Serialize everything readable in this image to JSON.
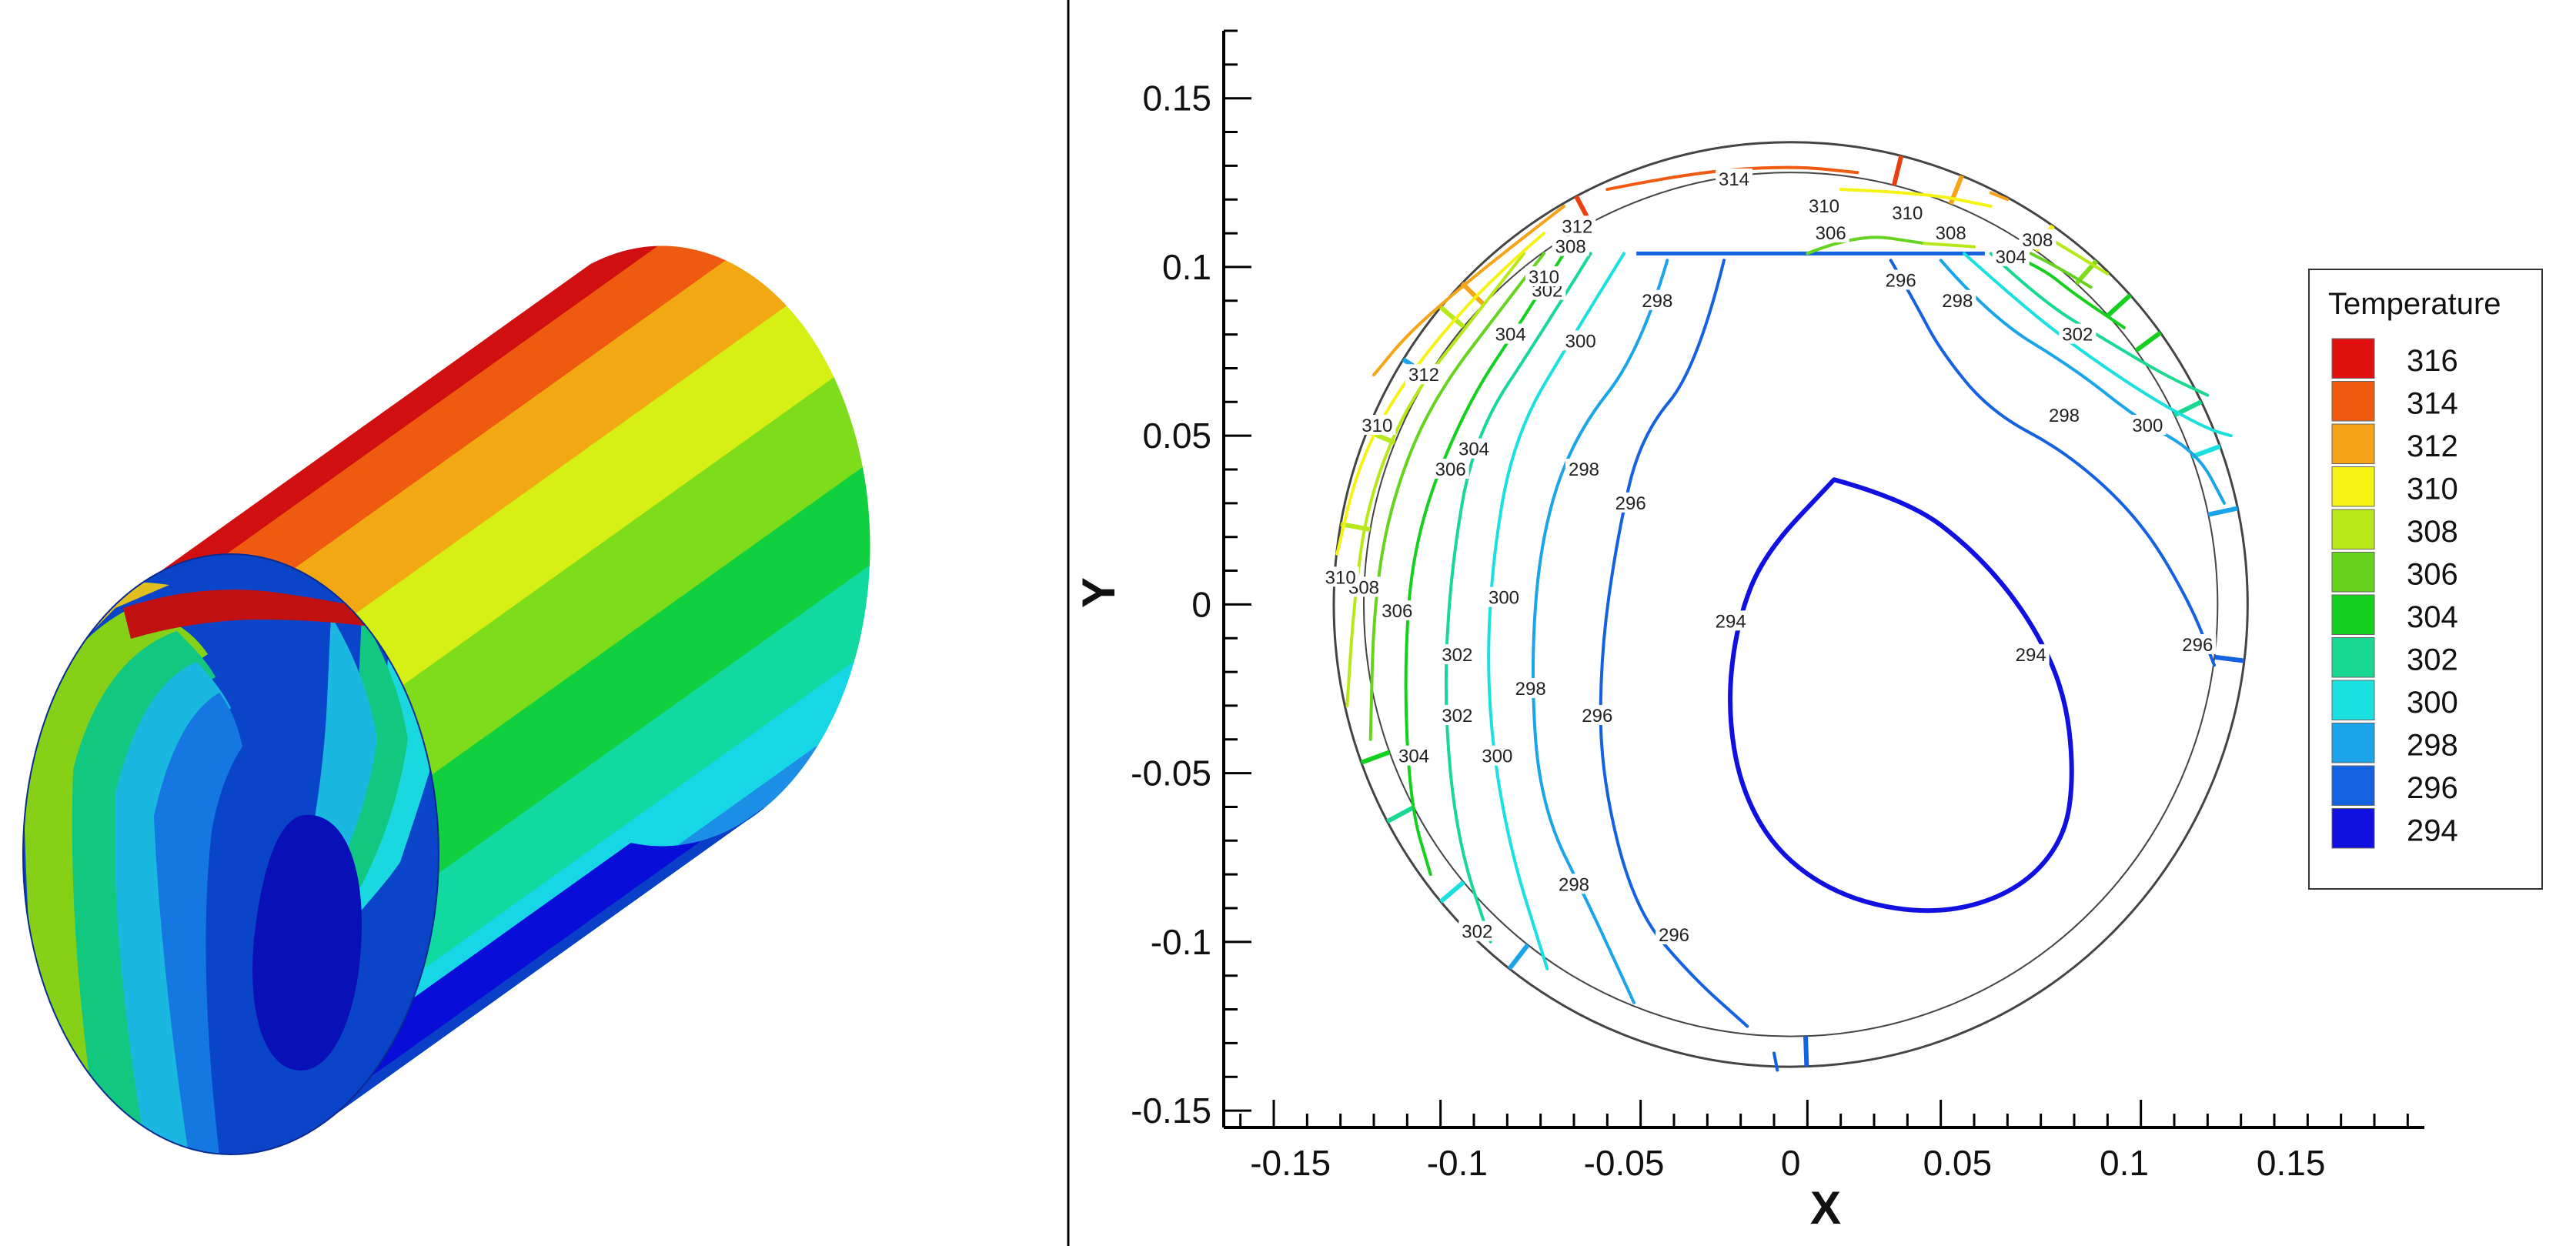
{
  "chart_data": [
    {
      "type": "3d-surface",
      "colors_by_level": [
        "#0a0dd8",
        "#0a3fc8",
        "#1c8ee6",
        "#17d6e6",
        "#11d9a0",
        "#10d040",
        "#7fdc1a",
        "#d6ef14",
        "#f2a812",
        "#ee5a10",
        "#d01010"
      ]
    },
    {
      "type": "contour",
      "xlabel": "X",
      "ylabel": "Y",
      "xlim": [
        -0.17,
        0.19
      ],
      "ylim": [
        -0.155,
        0.17
      ],
      "xticks": [
        -0.15,
        -0.1,
        -0.05,
        0,
        0.05,
        0.1,
        0.15
      ],
      "xtick_labels": [
        "-0.15",
        "-0.1",
        "-0.05",
        "0",
        "0.05",
        "0.1",
        "0.15"
      ],
      "yticks": [
        0.15,
        0.1,
        0.05,
        0,
        -0.05,
        -0.1,
        -0.15
      ],
      "ytick_labels": [
        "0.15",
        "0.1",
        "0.05",
        "0",
        "-0.05",
        "-0.1",
        "-0.15"
      ],
      "legend": {
        "title": "Temperature",
        "position": "right",
        "levels": [
          316,
          314,
          312,
          310,
          308,
          306,
          304,
          302,
          300,
          298,
          296,
          294
        ],
        "labels": [
          "316",
          "314",
          "312",
          "310",
          "308",
          "306",
          "304",
          "302",
          "300",
          "298",
          "296",
          "294"
        ],
        "colors": [
          "#e01010",
          "#f05a10",
          "#f4a416",
          "#f6f214",
          "#b6e81a",
          "#66d41e",
          "#16d020",
          "#18d892",
          "#1ae0e0",
          "#1aa4ea",
          "#1462e0",
          "#1010e0"
        ]
      },
      "domain": {
        "center": [
          0,
          0
        ],
        "outer_radius": 0.137,
        "inner_radius": 0.128,
        "flat_top_y": 0.104
      },
      "contours": [
        {
          "level": 294,
          "label": "294",
          "color": "#1010e0",
          "points": [
            [
              0.013,
              0.037
            ],
            [
              0.035,
              0.031
            ],
            [
              0.055,
              0.016
            ],
            [
              0.071,
              -0.003
            ],
            [
              0.082,
              -0.025
            ],
            [
              0.085,
              -0.05
            ],
            [
              0.082,
              -0.07
            ],
            [
              0.068,
              -0.085
            ],
            [
              0.045,
              -0.092
            ],
            [
              0.018,
              -0.088
            ],
            [
              -0.003,
              -0.075
            ],
            [
              -0.015,
              -0.055
            ],
            [
              -0.019,
              -0.03
            ],
            [
              -0.016,
              -0.005
            ],
            [
              -0.008,
              0.015
            ],
            [
              0.013,
              0.037
            ]
          ],
          "label_positions": [
            [
              -0.018,
              -0.005
            ],
            [
              0.072,
              -0.015
            ]
          ]
        },
        {
          "level": 296,
          "label": "296",
          "color": "#1462e0",
          "points": [
            [
              -0.02,
              0.102
            ],
            [
              -0.028,
              0.07
            ],
            [
              -0.045,
              0.05
            ],
            [
              -0.052,
              0.02
            ],
            [
              -0.057,
              -0.015
            ],
            [
              -0.057,
              -0.05
            ],
            [
              -0.047,
              -0.09
            ],
            [
              -0.03,
              -0.11
            ],
            [
              -0.013,
              -0.125
            ]
          ],
          "label_positions": [
            [
              -0.048,
              0.03
            ],
            [
              -0.058,
              -0.033
            ],
            [
              -0.035,
              -0.098
            ]
          ]
        },
        {
          "level": 296,
          "label": "296",
          "color": "#1462e0",
          "points": [
            [
              -0.005,
              -0.133
            ],
            [
              -0.004,
              -0.138
            ]
          ],
          "label_positions": []
        },
        {
          "level": 296,
          "label": "296",
          "color": "#1462e0",
          "points": [
            [
              0.03,
              0.102
            ],
            [
              0.037,
              0.09
            ],
            [
              0.045,
              0.075
            ],
            [
              0.06,
              0.057
            ],
            [
              0.083,
              0.045
            ],
            [
              0.105,
              0.025
            ],
            [
              0.12,
              0.0
            ],
            [
              0.127,
              -0.018
            ]
          ],
          "label_positions": [
            [
              0.033,
              0.096
            ],
            [
              0.122,
              -0.012
            ]
          ]
        },
        {
          "level": 298,
          "label": "298",
          "color": "#1aa4ea",
          "points": [
            [
              -0.037,
              0.102
            ],
            [
              -0.045,
              0.075
            ],
            [
              -0.065,
              0.05
            ],
            [
              -0.075,
              0.02
            ],
            [
              -0.078,
              -0.02
            ],
            [
              -0.075,
              -0.06
            ],
            [
              -0.06,
              -0.09
            ],
            [
              -0.047,
              -0.118
            ]
          ],
          "label_positions": [
            [
              -0.04,
              0.09
            ],
            [
              -0.062,
              0.04
            ],
            [
              -0.078,
              -0.025
            ],
            [
              -0.065,
              -0.083
            ]
          ]
        },
        {
          "level": 298,
          "label": "298",
          "color": "#1aa4ea",
          "points": [
            [
              0.045,
              0.102
            ],
            [
              0.06,
              0.085
            ],
            [
              0.085,
              0.07
            ],
            [
              0.104,
              0.055
            ],
            [
              0.122,
              0.045
            ],
            [
              0.13,
              0.03
            ]
          ],
          "label_positions": [
            [
              0.05,
              0.09
            ],
            [
              0.082,
              0.056
            ]
          ]
        },
        {
          "level": 300,
          "label": "300",
          "color": "#1ae0e0",
          "points": [
            [
              -0.05,
              0.104
            ],
            [
              -0.065,
              0.08
            ],
            [
              -0.083,
              0.05
            ],
            [
              -0.09,
              0.01
            ],
            [
              -0.091,
              -0.03
            ],
            [
              -0.085,
              -0.07
            ],
            [
              -0.073,
              -0.108
            ]
          ],
          "label_positions": [
            [
              -0.063,
              0.078
            ],
            [
              -0.086,
              0.002
            ],
            [
              -0.088,
              -0.045
            ]
          ]
        },
        {
          "level": 300,
          "label": "300",
          "color": "#1ae0e0",
          "points": [
            [
              0.052,
              0.104
            ],
            [
              0.07,
              0.088
            ],
            [
              0.09,
              0.073
            ],
            [
              0.11,
              0.06
            ],
            [
              0.125,
              0.052
            ],
            [
              0.132,
              0.05
            ]
          ],
          "label_positions": [
            [
              0.107,
              0.053
            ]
          ]
        },
        {
          "level": 302,
          "label": "302",
          "color": "#18d892",
          "points": [
            [
              -0.06,
              0.104
            ],
            [
              -0.075,
              0.08
            ],
            [
              -0.095,
              0.05
            ],
            [
              -0.102,
              0.01
            ],
            [
              -0.104,
              -0.03
            ],
            [
              -0.1,
              -0.07
            ],
            [
              -0.09,
              -0.1
            ]
          ],
          "label_positions": [
            [
              -0.073,
              0.093
            ],
            [
              -0.1,
              -0.015
            ],
            [
              -0.1,
              -0.033
            ],
            [
              -0.094,
              -0.097
            ]
          ]
        },
        {
          "level": 302,
          "label": "302",
          "color": "#18d892",
          "points": [
            [
              0.06,
              0.104
            ],
            [
              0.075,
              0.09
            ],
            [
              0.095,
              0.078
            ],
            [
              0.112,
              0.068
            ],
            [
              0.125,
              0.062
            ]
          ],
          "label_positions": [
            [
              0.086,
              0.08
            ]
          ]
        },
        {
          "level": 304,
          "label": "304",
          "color": "#16d020",
          "points": [
            [
              -0.068,
              0.104
            ],
            [
              -0.08,
              0.085
            ],
            [
              -0.098,
              0.058
            ],
            [
              -0.113,
              0.02
            ],
            [
              -0.116,
              -0.02
            ],
            [
              -0.114,
              -0.06
            ],
            [
              -0.108,
              -0.08
            ]
          ],
          "label_positions": [
            [
              -0.084,
              0.08
            ],
            [
              -0.095,
              0.046
            ],
            [
              -0.113,
              -0.045
            ]
          ]
        },
        {
          "level": 304,
          "label": "304",
          "color": "#16d020",
          "points": [
            [
              0.065,
              0.104
            ],
            [
              0.075,
              0.1
            ],
            [
              0.085,
              0.092
            ],
            [
              0.1,
              0.082
            ]
          ],
          "label_positions": [
            [
              0.066,
              0.103
            ]
          ]
        },
        {
          "level": 306,
          "label": "306",
          "color": "#66d41e",
          "points": [
            [
              -0.074,
              0.104
            ],
            [
              -0.085,
              0.09
            ],
            [
              -0.108,
              0.06
            ],
            [
              -0.12,
              0.03
            ],
            [
              -0.125,
              0.0
            ],
            [
              -0.126,
              -0.04
            ]
          ],
          "label_positions": [
            [
              -0.102,
              0.04
            ],
            [
              -0.118,
              -0.002
            ]
          ]
        },
        {
          "level": 306,
          "label": "306",
          "color": "#66d41e",
          "points": [
            [
              0.005,
              0.104
            ],
            [
              0.02,
              0.11
            ],
            [
              0.04,
              0.107
            ]
          ],
          "label_positions": [
            [
              0.012,
              0.11
            ]
          ]
        },
        {
          "level": 306,
          "label": "306",
          "color": "#66d41e",
          "points": [
            [
              0.072,
              0.104
            ],
            [
              0.08,
              0.1
            ],
            [
              0.09,
              0.094
            ]
          ],
          "label_positions": []
        },
        {
          "level": 308,
          "label": "308",
          "color": "#b6e81a",
          "points": [
            [
              -0.08,
              0.104
            ],
            [
              -0.095,
              0.085
            ],
            [
              -0.115,
              0.06
            ],
            [
              -0.127,
              0.03
            ],
            [
              -0.131,
              0.0
            ],
            [
              -0.133,
              -0.03
            ]
          ],
          "label_positions": [
            [
              -0.066,
              0.106
            ],
            [
              -0.128,
              0.005
            ]
          ]
        },
        {
          "level": 308,
          "label": "308",
          "color": "#b6e81a",
          "points": [
            [
              0.04,
              0.107
            ],
            [
              0.055,
              0.106
            ]
          ],
          "label_positions": [
            [
              0.048,
              0.11
            ]
          ]
        },
        {
          "level": 308,
          "label": "308",
          "color": "#b6e81a",
          "points": [
            [
              0.075,
              0.11
            ],
            [
              0.085,
              0.104
            ],
            [
              0.095,
              0.098
            ]
          ],
          "label_positions": [
            [
              0.074,
              0.108
            ]
          ]
        },
        {
          "level": 310,
          "label": "310",
          "color": "#f6f214",
          "points": [
            [
              -0.074,
              0.11
            ],
            [
              -0.088,
              0.098
            ],
            [
              -0.105,
              0.08
            ],
            [
              -0.12,
              0.06
            ],
            [
              -0.13,
              0.04
            ],
            [
              -0.136,
              0.015
            ]
          ],
          "label_positions": [
            [
              -0.074,
              0.097
            ],
            [
              -0.124,
              0.053
            ],
            [
              -0.135,
              0.008
            ]
          ]
        },
        {
          "level": 310,
          "label": "310",
          "color": "#f6f214",
          "points": [
            [
              0.015,
              0.123
            ],
            [
              0.04,
              0.122
            ],
            [
              0.06,
              0.118
            ]
          ],
          "label_positions": [
            [
              0.01,
              0.118
            ],
            [
              0.035,
              0.116
            ]
          ]
        },
        {
          "level": 312,
          "label": "312",
          "color": "#f4a416",
          "points": [
            [
              -0.068,
              0.118
            ],
            [
              -0.085,
              0.105
            ],
            [
              -0.1,
              0.093
            ],
            [
              -0.115,
              0.08
            ],
            [
              -0.125,
              0.068
            ]
          ],
          "label_positions": [
            [
              -0.064,
              0.112
            ],
            [
              -0.11,
              0.068
            ]
          ]
        },
        {
          "level": 312,
          "label": "312",
          "color": "#f4a416",
          "points": [
            [
              0.06,
              0.122
            ],
            [
              0.065,
              0.12
            ]
          ],
          "label_positions": []
        },
        {
          "level": 314,
          "label": "314",
          "color": "#f05a10",
          "points": [
            [
              -0.055,
              0.123
            ],
            [
              -0.03,
              0.128
            ],
            [
              0.0,
              0.13
            ],
            [
              0.02,
              0.128
            ]
          ],
          "label_positions": [
            [
              -0.017,
              0.126
            ]
          ]
        }
      ],
      "mesh_lines": [
        {
          "color": "#e84010",
          "angle": 76
        },
        {
          "color": "#f4a416",
          "angle": 68
        },
        {
          "color": "#f6f214",
          "angle": 55
        },
        {
          "color": "#7fdc1a",
          "angle": 48
        },
        {
          "color": "#16d020",
          "angle": 42
        },
        {
          "color": "#16d020",
          "angle": 36
        },
        {
          "color": "#18d892",
          "angle": 26
        },
        {
          "color": "#1ae0e0",
          "angle": 20
        },
        {
          "color": "#1aa4ea",
          "angle": 12
        },
        {
          "color": "#1462e0",
          "angle": -7
        },
        {
          "color": "#1aa4ea",
          "angle": 148
        },
        {
          "color": "#b6e81a",
          "angle": 140
        },
        {
          "color": "#e84010",
          "angle": 118
        },
        {
          "color": "#f4a416",
          "angle": 136
        },
        {
          "color": "#b6e81a",
          "angle": 158
        },
        {
          "color": "#b6e81a",
          "angle": 170
        },
        {
          "color": "#16d020",
          "angle": 200
        },
        {
          "color": "#18d892",
          "angle": 208
        },
        {
          "color": "#1ae0e0",
          "angle": 220
        },
        {
          "color": "#1aa4ea",
          "angle": 232
        },
        {
          "color": "#1462e0",
          "angle": 272
        }
      ]
    }
  ]
}
